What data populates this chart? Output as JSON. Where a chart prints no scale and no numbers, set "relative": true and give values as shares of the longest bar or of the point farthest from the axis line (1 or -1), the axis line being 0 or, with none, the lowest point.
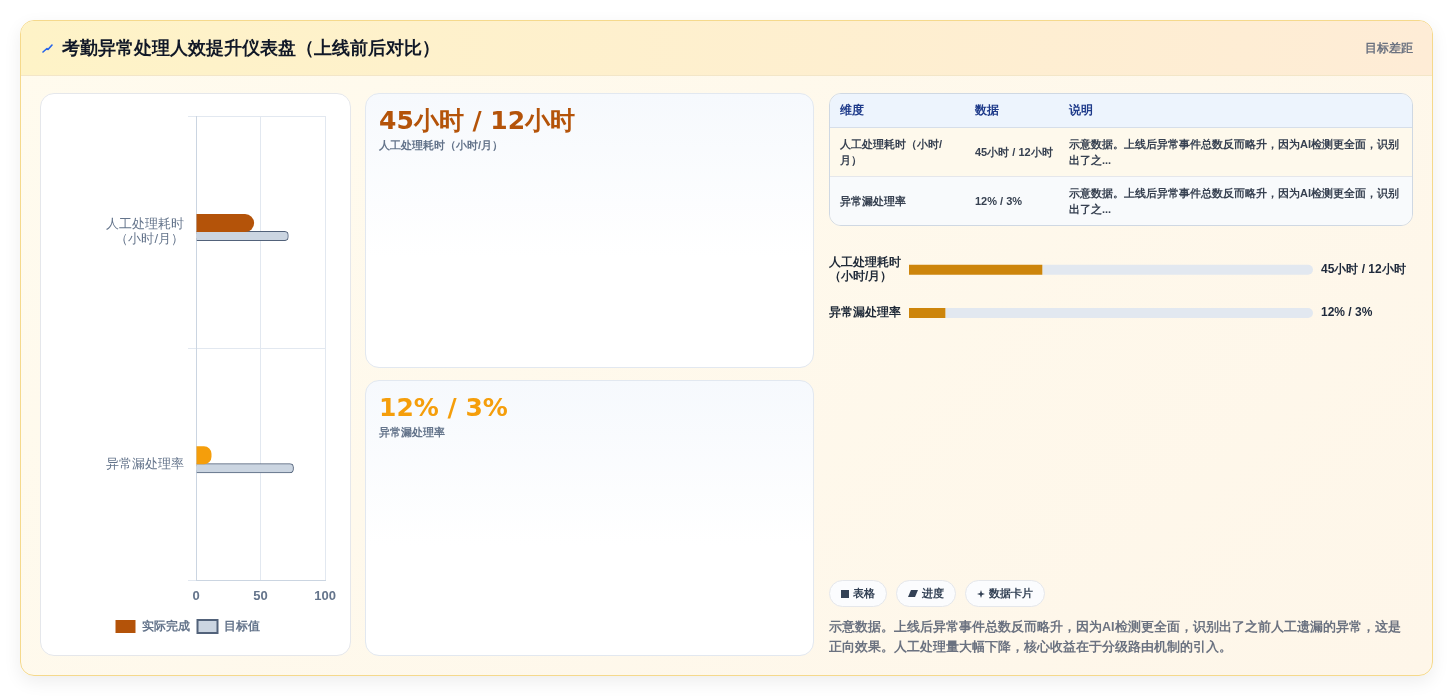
{
  "chart_data": [
    {
      "type": "other",
      "title": "考勤异常处理人效提升仪表盘（上线前后对比）",
      "annotations": [
        "目标差距"
      ]
    },
    {
      "type": "bar",
      "orientation": "horizontal",
      "categories": [
        "人工处理耗时（小时/月）",
        "异常漏处理率"
      ],
      "series": [
        {
          "name": "实际完成",
          "colors": [
            "#b45309",
            "#f59e0b"
          ],
          "values": [
            45,
            12
          ]
        },
        {
          "name": "目标值",
          "color": "#cbd5e1",
          "values": [
            71,
            75
          ]
        }
      ],
      "xlim": [
        0,
        100
      ],
      "xticks": [
        0,
        50,
        100
      ],
      "grid": true,
      "legend": "bottom"
    },
    {
      "type": "other",
      "title": "45小时 / 12小时",
      "subtitle": "人工处理耗时（小时/月）",
      "color": "#b45309"
    },
    {
      "type": "other",
      "title": "12% / 3%",
      "subtitle": "异常漏处理率",
      "color": "#f59e0b"
    },
    {
      "type": "other",
      "categories": [
        "维度",
        "数据",
        "说明"
      ],
      "annotations": [
        "人工处理耗时（小时/月）",
        "45小时 / 12小时",
        "示意数据。上线后异常事件总数反而略升，因为AI检测更全面，识别出了之...",
        "异常漏处理率",
        "12% / 3%",
        "示意数据。上线后异常事件总数反而略升，因为AI检测更全面，识别出了之..."
      ]
    },
    {
      "type": "bar",
      "orientation": "horizontal",
      "stacked": true,
      "relative": true,
      "categories": [
        "人工处理耗时（小时/月）",
        "异常漏处理率"
      ],
      "series": [
        {
          "color": "#cd850b",
          "values": [
            0.33,
            0.09
          ]
        },
        {
          "color": "#e2e8f0",
          "values": [
            0.67,
            0.91
          ]
        }
      ],
      "annotations": [
        "45小时 / 12小时",
        "12% / 3%"
      ]
    },
    {
      "type": "other",
      "categories": [
        "表格",
        "进度",
        "数据卡片"
      ],
      "annotations": [
        "示意数据。上线后异常事件总数反而略升，因为AI检测更全面，识别出了之前人工遗漏的异常，这是正向效果。人工处理量大幅下降，核心收益在于分级路由机制的引入。"
      ]
    }
  ]
}
